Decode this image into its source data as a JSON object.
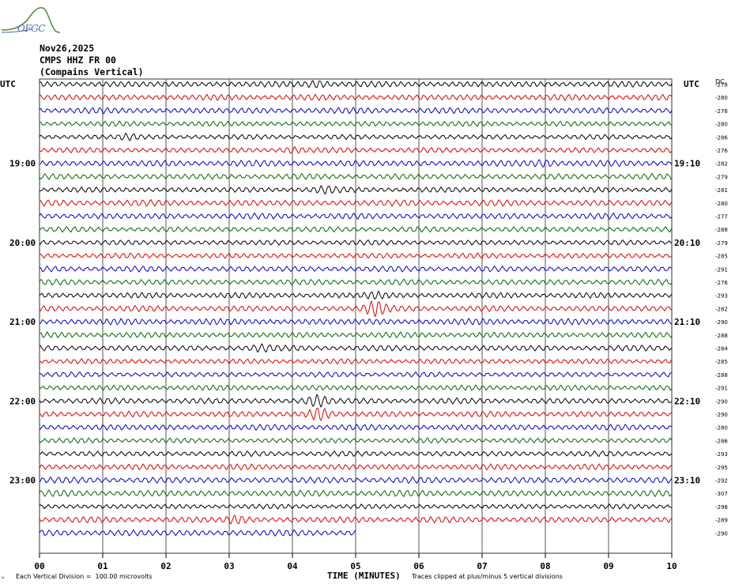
{
  "header": {
    "date": "Nov26,2025",
    "station": "CMPS HHZ FR 00",
    "component": "(Compains Vertical)"
  },
  "logo": {
    "text": "OFGC"
  },
  "footer": {
    "scale_note": "Each Vertical Division =  100.00 microvolts",
    "clip_note": "Traces clipped at plus/minus 5 vertical divisions",
    "corner_mark": "ᵤ"
  },
  "colors": {
    "cycle": [
      "#000000",
      "#dd0000",
      "#0000cc",
      "#006600"
    ],
    "grid": "#555555"
  },
  "chart_data": {
    "type": "line",
    "subtype": "helicorder",
    "xlabel": "TIME (MINUTES)",
    "x_ticks": [
      "00",
      "01",
      "02",
      "03",
      "04",
      "05",
      "06",
      "07",
      "08",
      "09",
      "10"
    ],
    "xlim": [
      0,
      10
    ],
    "left_axis_title": "UTC",
    "right_axis_title": "UTC",
    "right_column_title": "DC",
    "left_time_labels": [
      {
        "row": 6,
        "label": "19:00"
      },
      {
        "row": 12,
        "label": "20:00"
      },
      {
        "row": 18,
        "label": "21:00"
      },
      {
        "row": 24,
        "label": "22:00"
      },
      {
        "row": 30,
        "label": "23:00"
      }
    ],
    "right_time_labels": [
      {
        "row": 6,
        "label": "19:10"
      },
      {
        "row": 12,
        "label": "20:10"
      },
      {
        "row": 18,
        "label": "21:10"
      },
      {
        "row": 24,
        "label": "22:10"
      },
      {
        "row": 30,
        "label": "23:10"
      }
    ],
    "dc_offsets": [
      "-278",
      "-280",
      "-276",
      "-280",
      "-286",
      "-276",
      "-282",
      "-279",
      "-281",
      "-280",
      "-277",
      "-288",
      "-279",
      "-285",
      "-291",
      "-276",
      "-293",
      "-282",
      "-290",
      "-288",
      "-284",
      "-285",
      "-288",
      "-291",
      "-290",
      "-290",
      "-280",
      "-286",
      "-293",
      "-295",
      "-292",
      "-307",
      "-298",
      "-289",
      "-290"
    ],
    "last_row_end_minute": 5.0,
    "events": [
      {
        "row": 0,
        "minute": 4.4,
        "amplitude": 1.6
      },
      {
        "row": 4,
        "minute": 1.4,
        "amplitude": 1.5
      },
      {
        "row": 5,
        "minute": 4.0,
        "amplitude": 1.4
      },
      {
        "row": 6,
        "minute": 8.0,
        "amplitude": 1.5
      },
      {
        "row": 8,
        "minute": 4.5,
        "amplitude": 1.4
      },
      {
        "row": 16,
        "minute": 5.3,
        "amplitude": 1.5
      },
      {
        "row": 17,
        "minute": 5.3,
        "amplitude": 2.2
      },
      {
        "row": 20,
        "minute": 3.5,
        "amplitude": 1.4
      },
      {
        "row": 24,
        "minute": 4.4,
        "amplitude": 2.0
      },
      {
        "row": 25,
        "minute": 4.4,
        "amplitude": 2.4
      },
      {
        "row": 33,
        "minute": 3.1,
        "amplitude": 1.5
      }
    ]
  }
}
